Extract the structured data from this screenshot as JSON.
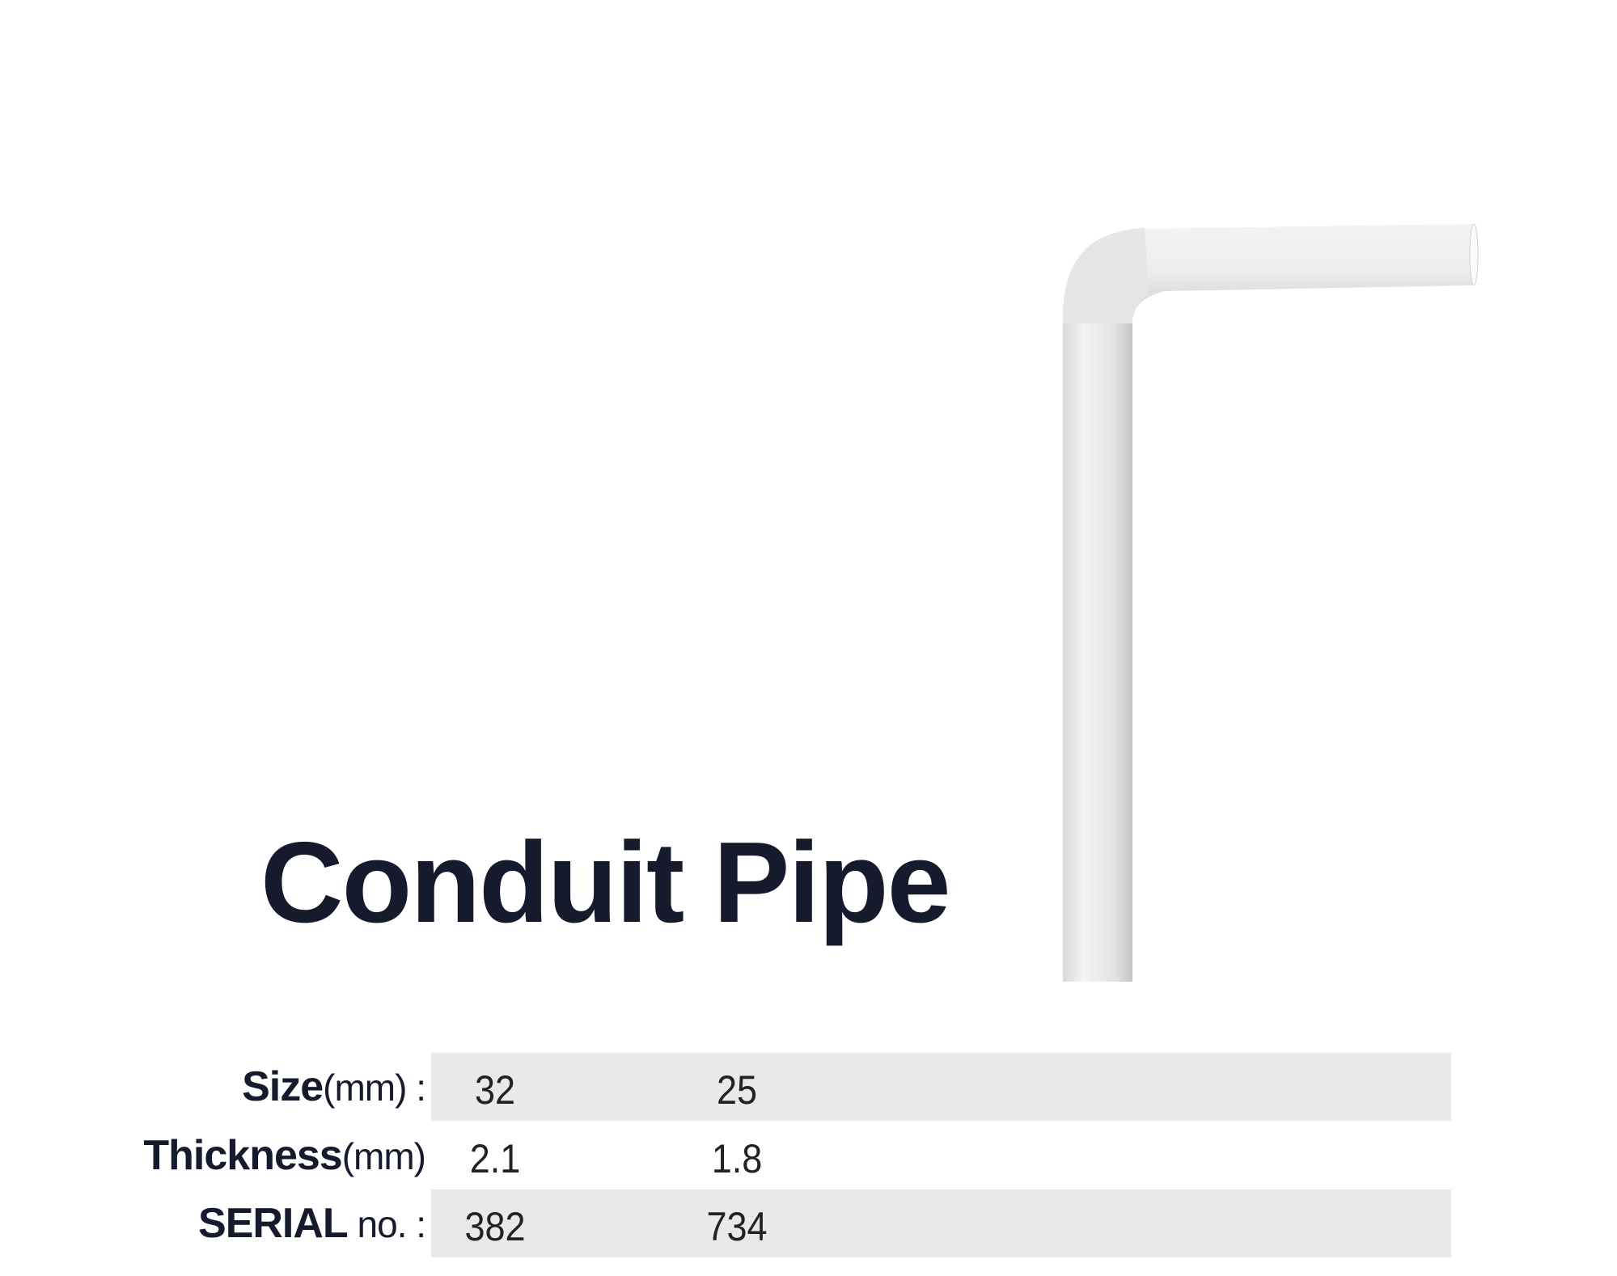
{
  "title": "Conduit Pipe",
  "image": {
    "subject": "white conduit pipe elbow",
    "icon": "pipe-image"
  },
  "colors": {
    "text": "#151a2d",
    "row_shade": "#e8e9eb",
    "pipe": "#f2f2f2"
  },
  "specs": [
    {
      "label_bold": "Size",
      "label_rest": "(mm) :",
      "values": [
        "32",
        "25"
      ],
      "shaded": true
    },
    {
      "label_bold": "Thickness",
      "label_rest": "(mm)",
      "values": [
        "2.1",
        "1.8"
      ],
      "shaded": false
    },
    {
      "label_bold": "SERIAL",
      "label_rest": " no. :",
      "values": [
        "382",
        "734"
      ],
      "shaded": true
    }
  ]
}
